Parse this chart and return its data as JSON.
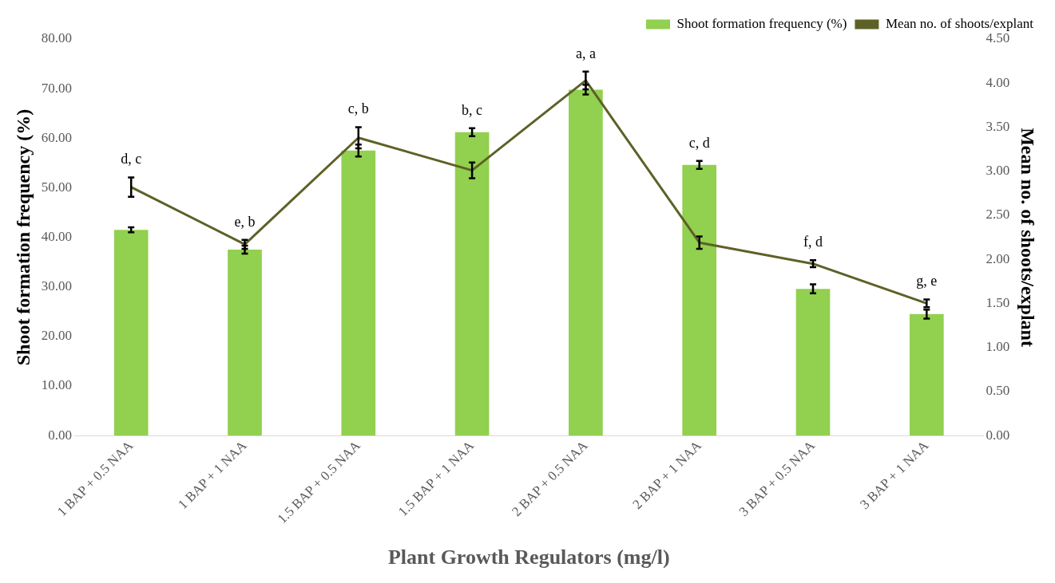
{
  "chart_data": {
    "type": "bar",
    "xlabel": "Plant Growth Regulators (mg/l)",
    "ylabel": "Shoot formation frequency (%)",
    "y2label": "Mean no. of shoots/explant",
    "categories": [
      "1 BAP + 0.5 NAA",
      "1 BAP + 1 NAA",
      "1.5 BAP + 0.5 NAA",
      "1.5 BAP + 1 NAA",
      "2 BAP + 0.5 NAA",
      "2 BAP + 1 NAA",
      "3 BAP + 0.5 NAA",
      "3 BAP + 1 NAA"
    ],
    "series": [
      {
        "name": "Shoot formation frequency (%)",
        "color": "#92d050",
        "values": [
          41.5,
          37.5,
          57.5,
          61.2,
          69.8,
          54.6,
          29.6,
          24.5
        ],
        "errors": [
          0.5,
          0.8,
          1.2,
          0.8,
          1.0,
          0.8,
          0.9,
          0.9
        ]
      },
      {
        "name": "Mean no. of shoots/explant",
        "type": "line",
        "axis": "y2",
        "color": "#5e6127",
        "marker": "none",
        "values": [
          2.82,
          2.17,
          3.38,
          3.01,
          4.03,
          2.19,
          1.95,
          1.5
        ],
        "errors": [
          0.11,
          0.05,
          0.12,
          0.09,
          0.1,
          0.07,
          0.04,
          0.045
        ]
      }
    ],
    "ylim": [
      0,
      80
    ],
    "yticks": [
      {
        "value": 0,
        "label": "0.00"
      },
      {
        "value": 10,
        "label": "10.00"
      },
      {
        "value": 20,
        "label": "20.00"
      },
      {
        "value": 30,
        "label": "30.00"
      },
      {
        "value": 40,
        "label": "40.00"
      },
      {
        "value": 50,
        "label": "50.00"
      },
      {
        "value": 60,
        "label": "60.00"
      },
      {
        "value": 70,
        "label": "70.00"
      },
      {
        "value": 80,
        "label": "80.00"
      }
    ],
    "y2lim": [
      0,
      4.5
    ],
    "y2ticks": [
      {
        "value": 0,
        "label": "0.00"
      },
      {
        "value": 0.5,
        "label": "0.50"
      },
      {
        "value": 1,
        "label": "1.00"
      },
      {
        "value": 1.5,
        "label": "1.50"
      },
      {
        "value": 2,
        "label": "2.00"
      },
      {
        "value": 2.5,
        "label": "2.50"
      },
      {
        "value": 3,
        "label": "3.00"
      },
      {
        "value": 3.5,
        "label": "3.50"
      },
      {
        "value": 4,
        "label": "4.00"
      },
      {
        "value": 4.5,
        "label": "4.50"
      }
    ],
    "annotations": [
      "d, c",
      "e, b",
      "c, b",
      "b, c",
      "a, a",
      "c, d",
      "f, d",
      "g, e"
    ],
    "grid": false,
    "legend": "top right"
  }
}
